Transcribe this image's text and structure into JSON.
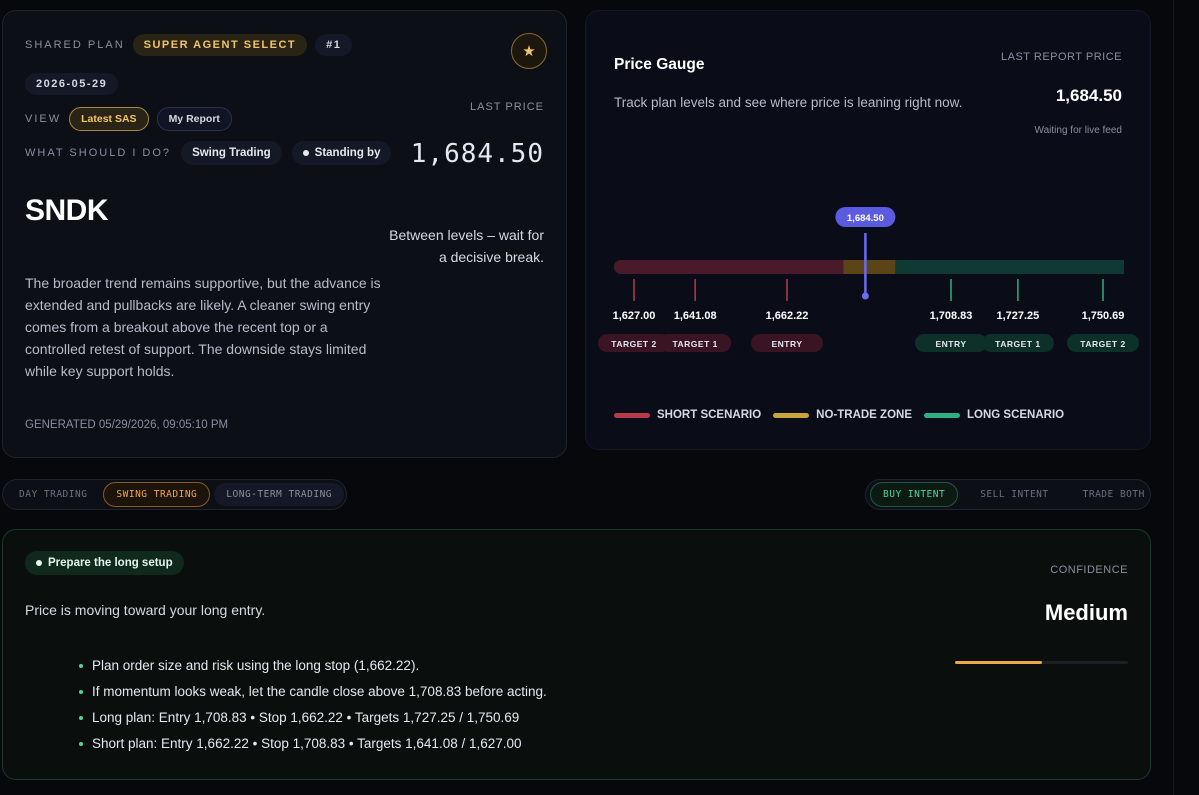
{
  "plan": {
    "shared_label": "SHARED PLAN",
    "agent_badge": "SUPER AGENT SELECT",
    "rank": "#1",
    "date": "2026-05-29",
    "view_label": "VIEW",
    "view_options": [
      "Latest SAS",
      "My Report"
    ],
    "what_label": "WHAT SHOULD I DO?",
    "mode": "Swing Trading",
    "status": "Standing by",
    "last_price_label": "LAST PRICE",
    "last_price": "1,684.50",
    "ticker": "SNDK",
    "guidance": "Between levels – wait for a decisive break.",
    "summary": "The broader trend remains supportive, but the advance is extended and pullbacks are likely. A cleaner swing entry comes from a breakout above the recent top or a controlled retest of support. The downside stays limited while key support holds.",
    "generated": "GENERATED 05/29/2026, 09:05:10 PM"
  },
  "gauge": {
    "title": "Price Gauge",
    "description": "Track plan levels and see where price is leaning right now.",
    "last_report_label": "LAST REPORT PRICE",
    "last_report_price": "1,684.50",
    "feed_status": "Waiting for live feed",
    "current_marker": "1,684.50",
    "current_value": 1684.5,
    "levels": [
      {
        "price": "1,627.00",
        "value": 1627.0,
        "tag": "TARGET 2",
        "side": "short"
      },
      {
        "price": "1,641.08",
        "value": 1641.08,
        "tag": "TARGET 1",
        "side": "short"
      },
      {
        "price": "1,662.22",
        "value": 1662.22,
        "tag": "ENTRY",
        "side": "short"
      },
      {
        "price": "1,708.83",
        "value": 1708.83,
        "tag": "ENTRY",
        "side": "long"
      },
      {
        "price": "1,727.25",
        "value": 1727.25,
        "tag": "TARGET 1",
        "side": "long"
      },
      {
        "price": "1,750.69",
        "value": 1750.69,
        "tag": "TARGET 2",
        "side": "long"
      }
    ],
    "legend": [
      {
        "label": "SHORT SCENARIO",
        "color": "#b8394a"
      },
      {
        "label": "NO-TRADE ZONE",
        "color": "#c9a43c"
      },
      {
        "label": "LONG SCENARIO",
        "color": "#2fae7e"
      }
    ]
  },
  "horizon_tabs": [
    "DAY TRADING",
    "SWING TRADING",
    "LONG-TERM TRADING"
  ],
  "horizon_active": "SWING TRADING",
  "intent_tabs": [
    "BUY INTENT",
    "SELL INTENT",
    "TRADE BOTH"
  ],
  "intent_active": "BUY INTENT",
  "action": {
    "setup": "Prepare the long setup",
    "headline": "Price is moving toward your long entry.",
    "confidence_label": "CONFIDENCE",
    "confidence": "Medium",
    "confidence_level": 0.5,
    "bullets": [
      "Plan order size and risk using the long stop (1,662.22).",
      "If momentum looks weak, let the candle close above 1,708.83 before acting.",
      "Long plan: Entry 1,708.83 • Stop 1,662.22 • Targets 1,727.25 / 1,750.69",
      "Short plan: Entry 1,662.22 • Stop 1,708.83 • Targets 1,641.08 / 1,627.00"
    ]
  }
}
